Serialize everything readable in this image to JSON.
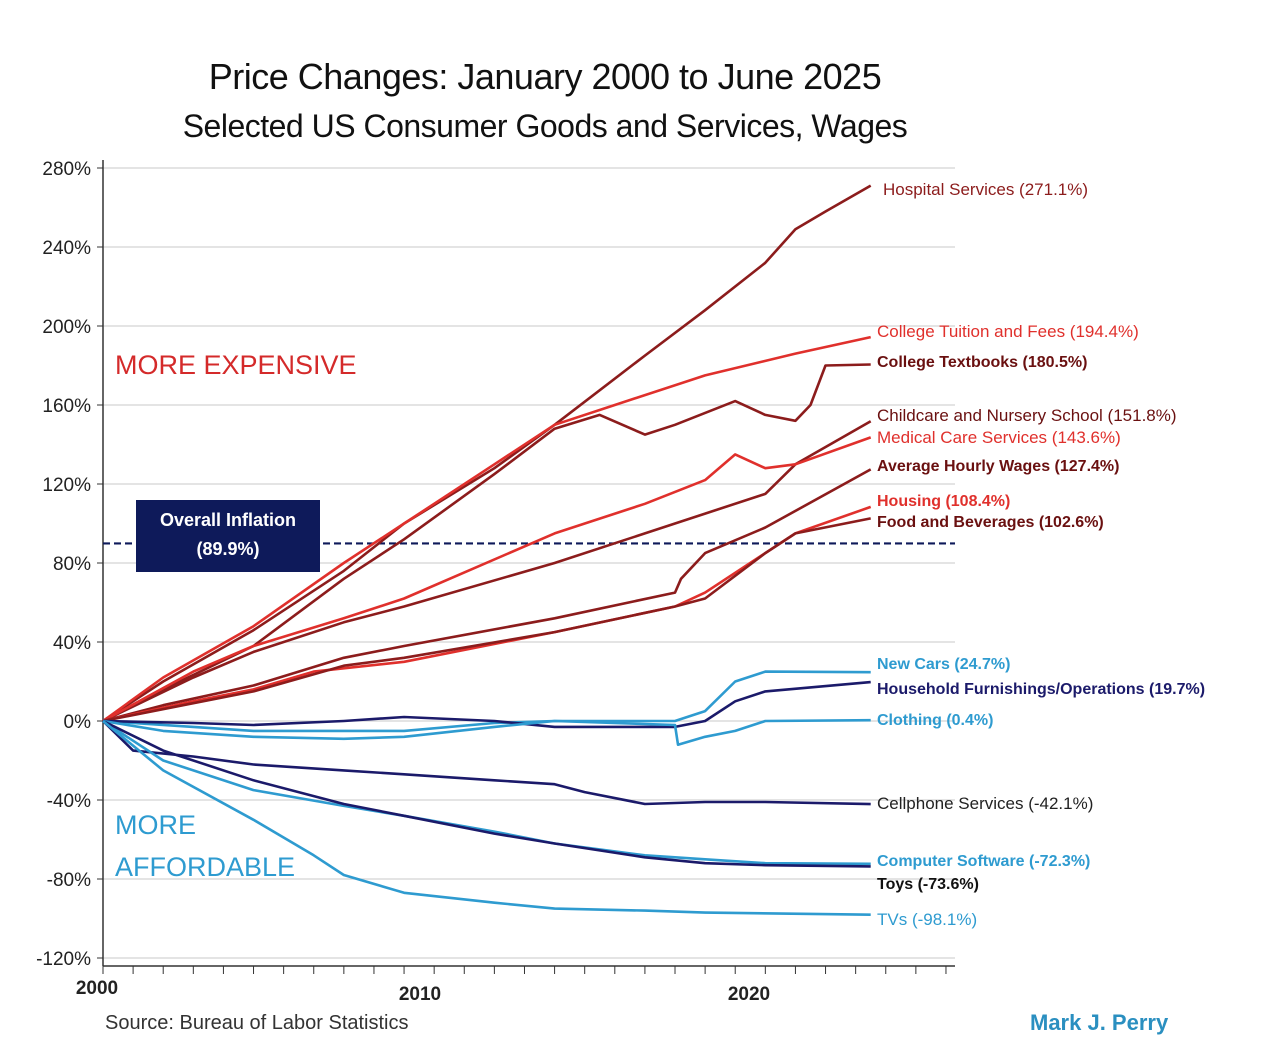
{
  "chart_data": {
    "type": "line",
    "title": "Price Changes: January 2000 to June 2025",
    "subtitle": "Selected US Consumer Goods and Services, Wages",
    "ylim": [
      -120,
      280
    ],
    "yticks": [
      "280%",
      "240%",
      "200%",
      "160%",
      "120%",
      "80%",
      "40%",
      "0%",
      "-40%",
      "-80%",
      "-120%"
    ],
    "ytick_values": [
      280,
      240,
      200,
      160,
      120,
      80,
      40,
      0,
      -40,
      -80,
      -120
    ],
    "xlim": [
      2000,
      2028.3
    ],
    "xticks": [
      "2000",
      "2010",
      "2020"
    ],
    "grid": true,
    "annotations": {
      "more_expensive": "MORE EXPENSIVE",
      "more_affordable_1": "MORE",
      "more_affordable_2": "AFFORDABLE",
      "inflation_label_1": "Overall Inflation",
      "inflation_label_2": "(89.9%)",
      "inflation_value": 89.9
    },
    "source": "Source: Bureau of Labor Statistics",
    "author": "Mark J. Perry",
    "colors": {
      "dark_red": "#8c1c1c",
      "red": "#e0302c",
      "navy": "#1b1a6a",
      "blue": "#2e9bd0",
      "inflation_box": "#0e1a5a"
    },
    "series": [
      {
        "name": "Hospital Services (271.1%)",
        "color": "#8c1c1c",
        "x": [
          2000,
          2002,
          2005,
          2008,
          2010,
          2013,
          2015,
          2018,
          2020,
          2022,
          2023,
          2024,
          2025.5
        ],
        "y": [
          0,
          20,
          46,
          76,
          100,
          128,
          150,
          185,
          208,
          232,
          249,
          258,
          271.1
        ]
      },
      {
        "name": "College Tuition and Fees (194.4%)",
        "color": "#e0302c",
        "x": [
          2000,
          2002,
          2005,
          2008,
          2010,
          2013,
          2015,
          2017,
          2020,
          2023,
          2025.5
        ],
        "y": [
          0,
          22,
          48,
          80,
          100,
          130,
          150,
          160,
          175,
          186,
          194.4
        ]
      },
      {
        "name": "College Textbooks (180.5%)",
        "color": "#8c1c1c",
        "x": [
          2000,
          2002,
          2005,
          2008,
          2010,
          2013,
          2015,
          2016.5,
          2018,
          2019,
          2021,
          2022,
          2023,
          2023.5,
          2024,
          2025.5
        ],
        "y": [
          0,
          16,
          38,
          72,
          92,
          125,
          148,
          155,
          145,
          150,
          162,
          155,
          152,
          160,
          180,
          180.5
        ]
      },
      {
        "name": "Childcare and Nursery School (151.8%)",
        "color": "#8c1c1c",
        "x": [
          2000,
          2003,
          2005,
          2008,
          2010,
          2015,
          2018,
          2020,
          2022,
          2023,
          2025.5
        ],
        "y": [
          0,
          22,
          35,
          50,
          58,
          80,
          95,
          105,
          115,
          130,
          151.8
        ]
      },
      {
        "name": "Medical Care Services (143.6%)",
        "color": "#e0302c",
        "x": [
          2000,
          2003,
          2005,
          2008,
          2010,
          2015,
          2018,
          2020,
          2021,
          2022,
          2023,
          2025.5
        ],
        "y": [
          0,
          25,
          38,
          52,
          62,
          95,
          110,
          122,
          135,
          128,
          130,
          143.6
        ]
      },
      {
        "name": "Average Hourly Wages (127.4%)",
        "color": "#8c1c1c",
        "x": [
          2000,
          2002,
          2005,
          2008,
          2010,
          2015,
          2019,
          2019.2,
          2020,
          2022,
          2025.5
        ],
        "y": [
          0,
          8,
          18,
          32,
          38,
          52,
          65,
          72,
          85,
          98,
          127.4
        ]
      },
      {
        "name": "Housing (108.4%)",
        "color": "#e0302c",
        "x": [
          2000,
          2003,
          2005,
          2007,
          2010,
          2015,
          2019,
          2020,
          2022,
          2023,
          2025.5
        ],
        "y": [
          0,
          10,
          16,
          25,
          30,
          45,
          58,
          65,
          85,
          95,
          108.4
        ]
      },
      {
        "name": "Food and Beverages (102.6%)",
        "color": "#8c1c1c",
        "x": [
          2000,
          2003,
          2005,
          2008,
          2010,
          2015,
          2019,
          2020,
          2022,
          2023,
          2025.5
        ],
        "y": [
          0,
          9,
          15,
          28,
          32,
          45,
          58,
          62,
          85,
          95,
          102.6
        ]
      },
      {
        "name": "New Cars (24.7%)",
        "color": "#2e9bd0",
        "x": [
          2000,
          2003,
          2005,
          2008,
          2010,
          2013,
          2015,
          2019,
          2020,
          2021,
          2022,
          2025.5
        ],
        "y": [
          0,
          -3,
          -5,
          -5,
          -5,
          -1,
          0,
          0,
          5,
          20,
          25,
          24.7
        ]
      },
      {
        "name": "Household Furnishings/Operations (19.7%)",
        "color": "#1b1a6a",
        "x": [
          2000,
          2003,
          2005,
          2008,
          2010,
          2013,
          2015,
          2019,
          2020,
          2021,
          2022,
          2025.5
        ],
        "y": [
          0,
          -1,
          -2,
          0,
          2,
          0,
          -3,
          -3,
          0,
          10,
          15,
          19.7
        ]
      },
      {
        "name": "Clothing (0.4%)",
        "color": "#2e9bd0",
        "x": [
          2000,
          2002,
          2005,
          2008,
          2010,
          2013,
          2015,
          2019,
          2019.1,
          2020,
          2021,
          2022,
          2025.5
        ],
        "y": [
          0,
          -5,
          -8,
          -9,
          -8,
          -3,
          0,
          -2,
          -12,
          -8,
          -5,
          0,
          0.4
        ]
      },
      {
        "name": "Cellphone Services (-42.1%)",
        "color": "#1b1a6a",
        "x": [
          2000,
          2001,
          2003,
          2005,
          2008,
          2010,
          2013,
          2015,
          2016,
          2018,
          2020,
          2022,
          2025.5
        ],
        "y": [
          0,
          -15,
          -18,
          -22,
          -25,
          -27,
          -30,
          -32,
          -36,
          -42,
          -41,
          -41,
          -42.1
        ]
      },
      {
        "name": "Computer Software (-72.3%)",
        "color": "#2e9bd0",
        "x": [
          2000,
          2002,
          2005,
          2008,
          2010,
          2013,
          2015,
          2018,
          2020,
          2022,
          2025.5
        ],
        "y": [
          0,
          -20,
          -35,
          -43,
          -48,
          -56,
          -62,
          -68,
          -70,
          -72,
          -72.3
        ]
      },
      {
        "name": "Toys (-73.6%)",
        "color": "#1b1a6a",
        "x": [
          2000,
          2002,
          2005,
          2008,
          2010,
          2013,
          2015,
          2018,
          2020,
          2022,
          2025.5
        ],
        "y": [
          0,
          -15,
          -30,
          -42,
          -48,
          -57,
          -62,
          -69,
          -72,
          -73,
          -73.6
        ]
      },
      {
        "name": "TVs (-98.1%)",
        "color": "#2e9bd0",
        "x": [
          2000,
          2002,
          2005,
          2007,
          2008,
          2010,
          2013,
          2015,
          2018,
          2020,
          2025.5
        ],
        "y": [
          0,
          -25,
          -50,
          -68,
          -78,
          -87,
          -92,
          -95,
          -96,
          -97,
          -98.1
        ]
      }
    ]
  }
}
